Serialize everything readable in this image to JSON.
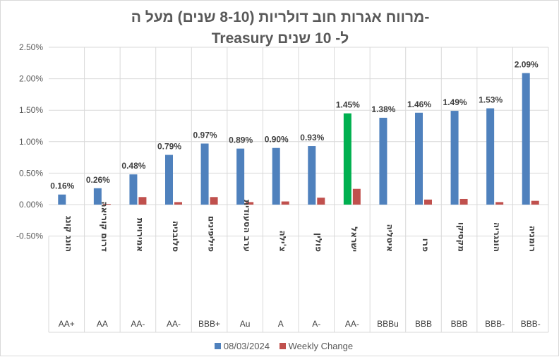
{
  "chart_data": {
    "type": "bar",
    "title": "מרווח אגרות חוב דולריות (8-10 שנים) מעל ה-",
    "subtitle": "Treasury ל- 10 שנים",
    "categories": [
      "הונג קונג",
      "דרום קוריאה",
      "אמירויות",
      "סלובניה",
      "פיליפינים",
      "ערב הסעודית",
      "צ'ילה",
      "פולין",
      "ישראל",
      "איטליה",
      "פרו",
      "מקסיקו",
      "הונגריה",
      "רומניה"
    ],
    "ratings": [
      "AA+",
      "AA",
      "AA-",
      "AA-",
      "BBB+",
      "Au",
      "A",
      "A-",
      "AA-",
      "BBBu",
      "BBB",
      "BBB",
      "BBB-",
      "BBB-"
    ],
    "series": [
      {
        "name": "08/03/2024",
        "color": "#4f81bd",
        "highlight_color": "#00b050",
        "highlight_category": "ישראל",
        "values": [
          0.16,
          0.26,
          0.48,
          0.79,
          0.97,
          0.89,
          0.9,
          0.93,
          1.45,
          1.38,
          1.46,
          1.49,
          1.53,
          2.09
        ],
        "labels": [
          "0.16%",
          "0.26%",
          "0.48%",
          "0.79%",
          "0.97%",
          "0.89%",
          "0.90%",
          "0.93%",
          "1.45%",
          "1.38%",
          "1.46%",
          "1.49%",
          "1.53%",
          "2.09%"
        ]
      },
      {
        "name": "Weekly Change",
        "color": "#c0504d",
        "values": [
          0.0,
          0.01,
          0.12,
          0.04,
          0.12,
          0.04,
          0.05,
          0.11,
          0.25,
          0.0,
          0.08,
          0.09,
          0.04,
          0.06
        ]
      }
    ],
    "yticks": [
      "-0.50%",
      "0.00%",
      "0.50%",
      "1.00%",
      "1.50%",
      "2.00%",
      "2.50%"
    ],
    "ylim": [
      -0.5,
      2.5
    ],
    "grid": true,
    "legend": "bottom"
  }
}
